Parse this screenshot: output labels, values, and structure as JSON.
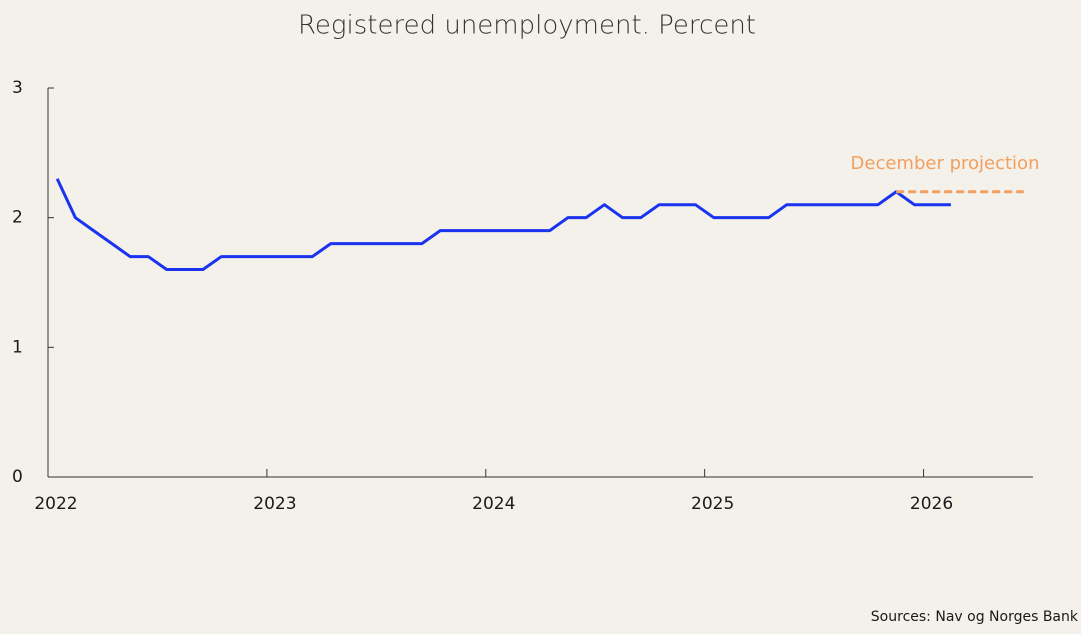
{
  "chart_data": {
    "type": "line",
    "title": "Registered unemployment. Percent",
    "annotation": "December projection",
    "source": "Sources: Nav og Norges Bank",
    "xlim": [
      2022,
      2026.5
    ],
    "xticks": [
      2022,
      2023,
      2024,
      2025,
      2026
    ],
    "ylim": [
      0,
      3
    ],
    "yticks": [
      0,
      1,
      2,
      3
    ],
    "series": [
      {
        "name": "Registered unemployment",
        "color": "#1a33f0",
        "dashed": false,
        "x": [
          2022.042,
          2022.125,
          2022.208,
          2022.292,
          2022.375,
          2022.458,
          2022.542,
          2022.625,
          2022.708,
          2022.792,
          2022.875,
          2022.958,
          2023.042,
          2023.125,
          2023.208,
          2023.292,
          2023.375,
          2023.458,
          2023.542,
          2023.625,
          2023.708,
          2023.792,
          2023.875,
          2023.958,
          2024.042,
          2024.125,
          2024.208,
          2024.292,
          2024.375,
          2024.458,
          2024.542,
          2024.625,
          2024.708,
          2024.792,
          2024.875,
          2024.958,
          2025.042,
          2025.125,
          2025.208,
          2025.292,
          2025.375,
          2025.458,
          2025.542,
          2025.625,
          2025.708,
          2025.792,
          2025.875,
          2025.958,
          2026.042,
          2026.125
        ],
        "values": [
          2.3,
          2.0,
          1.9,
          1.8,
          1.7,
          1.7,
          1.6,
          1.6,
          1.6,
          1.7,
          1.7,
          1.7,
          1.7,
          1.7,
          1.7,
          1.8,
          1.8,
          1.8,
          1.8,
          1.8,
          1.8,
          1.9,
          1.9,
          1.9,
          1.9,
          1.9,
          1.9,
          1.9,
          2.0,
          2.0,
          2.1,
          2.0,
          2.0,
          2.1,
          2.1,
          2.1,
          2.0,
          2.0,
          2.0,
          2.0,
          2.1,
          2.1,
          2.1,
          2.1,
          2.1,
          2.1,
          2.2,
          2.1,
          2.1,
          2.1
        ]
      },
      {
        "name": "December projection",
        "color": "#f0a060",
        "dashed": true,
        "x": [
          2025.875,
          2026.458
        ],
        "values": [
          2.2,
          2.2
        ]
      }
    ]
  }
}
